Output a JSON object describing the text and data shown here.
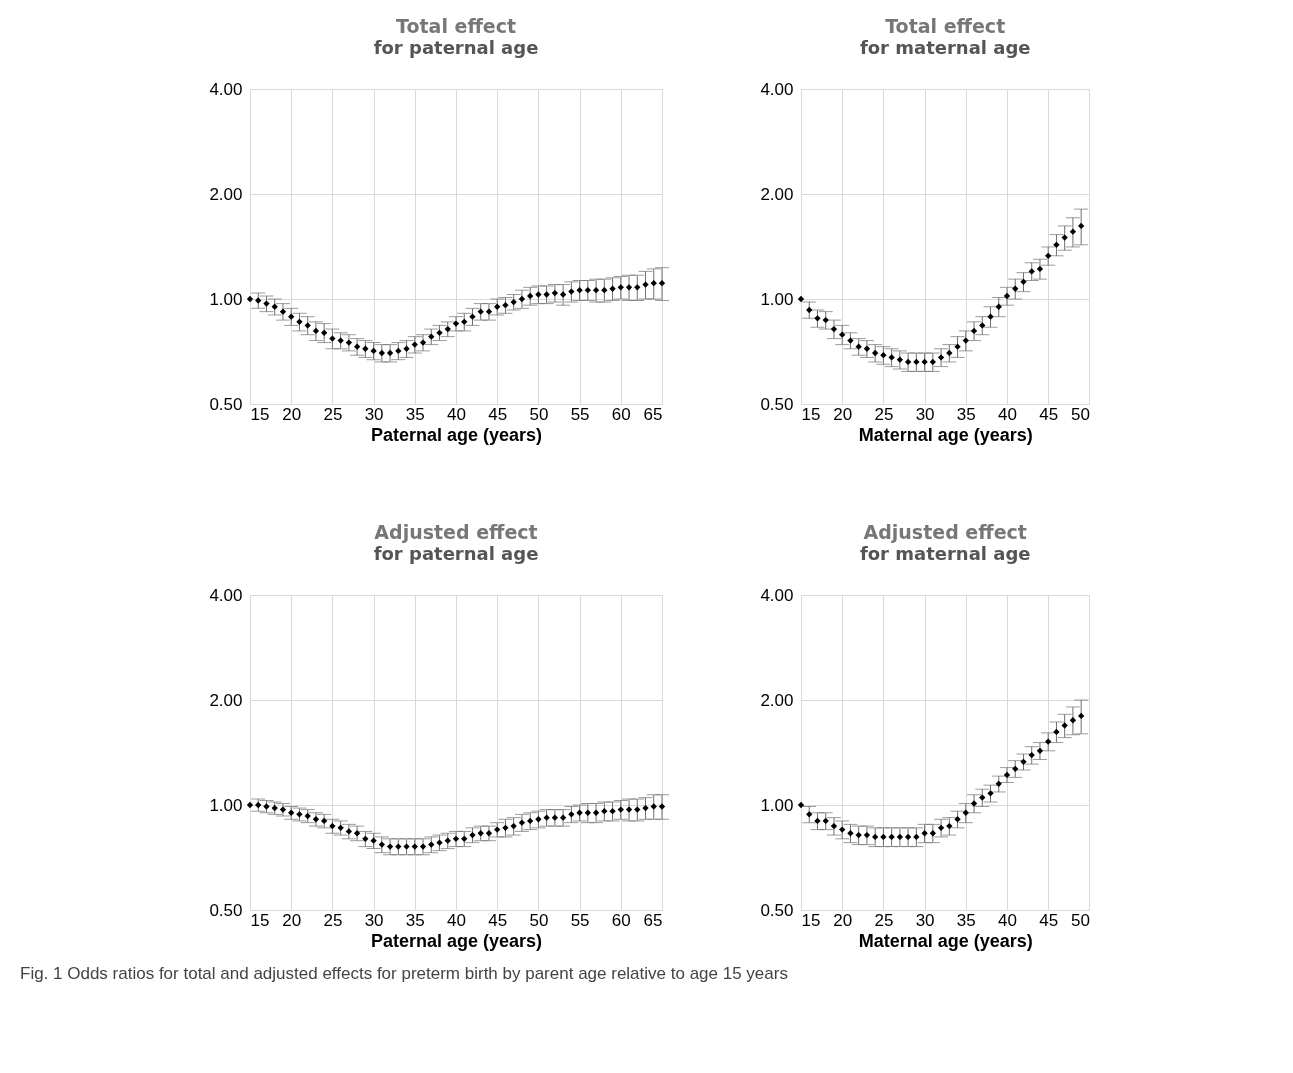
{
  "chart_data": [
    {
      "type": "scatter",
      "title": "Total effect",
      "subtitle": "for paternal age",
      "xlabel": "Paternal age (years)",
      "log": "y",
      "grid": true,
      "marker": "diamond",
      "xlim": [
        15,
        65
      ],
      "xticks": [
        15,
        20,
        25,
        30,
        35,
        40,
        45,
        50,
        55,
        60,
        65
      ],
      "ylim": [
        0.5,
        4
      ],
      "yticks": [
        {
          "value": 0.5,
          "label": "0.50"
        },
        {
          "value": 1,
          "label": "1.00"
        },
        {
          "value": 2,
          "label": "2.00"
        },
        {
          "value": 4,
          "label": "4.00"
        }
      ],
      "x": [
        15,
        16,
        17,
        18,
        19,
        20,
        21,
        22,
        23,
        24,
        25,
        26,
        27,
        28,
        29,
        30,
        31,
        32,
        33,
        34,
        35,
        36,
        37,
        38,
        39,
        40,
        41,
        42,
        43,
        44,
        45,
        46,
        47,
        48,
        49,
        50,
        51,
        52,
        53,
        54,
        55,
        56,
        57,
        58,
        59,
        60,
        61,
        62,
        63,
        64,
        65
      ],
      "series": [
        {
          "color": "#000000",
          "values": [
            1.0,
            0.99,
            0.97,
            0.95,
            0.92,
            0.89,
            0.86,
            0.84,
            0.81,
            0.8,
            0.77,
            0.76,
            0.75,
            0.73,
            0.72,
            0.71,
            0.7,
            0.7,
            0.71,
            0.72,
            0.74,
            0.75,
            0.78,
            0.8,
            0.82,
            0.85,
            0.86,
            0.89,
            0.92,
            0.92,
            0.95,
            0.96,
            0.98,
            1.0,
            1.02,
            1.03,
            1.03,
            1.04,
            1.03,
            1.05,
            1.06,
            1.06,
            1.06,
            1.06,
            1.07,
            1.08,
            1.08,
            1.08,
            1.1,
            1.11,
            1.11
          ],
          "errors": [
            null,
            0.05,
            0.05,
            0.05,
            0.05,
            0.05,
            0.05,
            0.05,
            0.05,
            0.05,
            0.05,
            0.04,
            0.04,
            0.04,
            0.04,
            0.04,
            0.04,
            0.04,
            0.04,
            0.04,
            0.04,
            0.04,
            0.04,
            0.04,
            0.04,
            0.04,
            0.05,
            0.05,
            0.05,
            0.05,
            0.05,
            0.05,
            0.05,
            0.06,
            0.06,
            0.06,
            0.06,
            0.06,
            0.07,
            0.07,
            0.07,
            0.07,
            0.08,
            0.08,
            0.08,
            0.08,
            0.09,
            0.09,
            0.1,
            0.11,
            0.12
          ]
        }
      ]
    },
    {
      "type": "scatter",
      "title": "Total effect",
      "subtitle": "for maternal age",
      "xlabel": "Maternal age (years)",
      "log": "y",
      "grid": true,
      "marker": "diamond",
      "xlim": [
        15,
        50
      ],
      "xticks": [
        15,
        20,
        25,
        30,
        35,
        40,
        45,
        50
      ],
      "ylim": [
        0.5,
        4
      ],
      "yticks": [
        {
          "value": 0.5,
          "label": "0.50"
        },
        {
          "value": 1,
          "label": "1.00"
        },
        {
          "value": 2,
          "label": "2.00"
        },
        {
          "value": 4,
          "label": "4.00"
        }
      ],
      "x": [
        15,
        16,
        17,
        18,
        19,
        20,
        21,
        22,
        23,
        24,
        25,
        26,
        27,
        28,
        29,
        30,
        31,
        32,
        33,
        34,
        35,
        36,
        37,
        38,
        39,
        40,
        41,
        42,
        43,
        44,
        45,
        46,
        47,
        48,
        49
      ],
      "series": [
        {
          "color": "#000000",
          "values": [
            1.0,
            0.93,
            0.88,
            0.87,
            0.82,
            0.79,
            0.76,
            0.73,
            0.72,
            0.7,
            0.69,
            0.68,
            0.67,
            0.66,
            0.66,
            0.66,
            0.66,
            0.68,
            0.7,
            0.73,
            0.76,
            0.81,
            0.84,
            0.89,
            0.95,
            1.02,
            1.07,
            1.12,
            1.2,
            1.22,
            1.33,
            1.43,
            1.5,
            1.56,
            1.62
          ],
          "errors": [
            null,
            0.05,
            0.05,
            0.05,
            0.05,
            0.05,
            0.04,
            0.04,
            0.04,
            0.04,
            0.04,
            0.04,
            0.04,
            0.04,
            0.04,
            0.04,
            0.04,
            0.04,
            0.04,
            0.05,
            0.05,
            0.05,
            0.05,
            0.06,
            0.06,
            0.06,
            0.07,
            0.07,
            0.07,
            0.08,
            0.08,
            0.1,
            0.12,
            0.15,
            0.19
          ]
        }
      ]
    },
    {
      "type": "scatter",
      "title": "Adjusted effect",
      "subtitle": "for paternal age",
      "xlabel": "Paternal age (years)",
      "log": "y",
      "grid": true,
      "marker": "diamond",
      "xlim": [
        15,
        65
      ],
      "xticks": [
        15,
        20,
        25,
        30,
        35,
        40,
        45,
        50,
        55,
        60,
        65
      ],
      "ylim": [
        0.5,
        4
      ],
      "yticks": [
        {
          "value": 0.5,
          "label": "0.50"
        },
        {
          "value": 1,
          "label": "1.00"
        },
        {
          "value": 2,
          "label": "2.00"
        },
        {
          "value": 4,
          "label": "4.00"
        }
      ],
      "x": [
        15,
        16,
        17,
        18,
        19,
        20,
        21,
        22,
        23,
        24,
        25,
        26,
        27,
        28,
        29,
        30,
        31,
        32,
        33,
        34,
        35,
        36,
        37,
        38,
        39,
        40,
        41,
        42,
        43,
        44,
        45,
        46,
        47,
        48,
        49,
        50,
        51,
        52,
        53,
        54,
        55,
        56,
        57,
        58,
        59,
        60,
        61,
        62,
        63,
        64,
        65
      ],
      "series": [
        {
          "color": "#000000",
          "values": [
            1.0,
            1.0,
            0.99,
            0.98,
            0.97,
            0.95,
            0.94,
            0.93,
            0.91,
            0.9,
            0.87,
            0.86,
            0.84,
            0.83,
            0.8,
            0.79,
            0.77,
            0.76,
            0.76,
            0.76,
            0.76,
            0.76,
            0.77,
            0.78,
            0.79,
            0.8,
            0.8,
            0.82,
            0.83,
            0.83,
            0.85,
            0.86,
            0.87,
            0.89,
            0.9,
            0.91,
            0.92,
            0.92,
            0.92,
            0.94,
            0.95,
            0.95,
            0.95,
            0.96,
            0.96,
            0.97,
            0.97,
            0.97,
            0.98,
            0.99,
            0.99
          ],
          "errors": [
            null,
            0.04,
            0.04,
            0.04,
            0.04,
            0.04,
            0.04,
            0.04,
            0.04,
            0.04,
            0.04,
            0.04,
            0.04,
            0.04,
            0.04,
            0.04,
            0.04,
            0.04,
            0.04,
            0.04,
            0.04,
            0.04,
            0.04,
            0.04,
            0.04,
            0.04,
            0.04,
            0.04,
            0.04,
            0.04,
            0.04,
            0.05,
            0.05,
            0.05,
            0.05,
            0.05,
            0.05,
            0.05,
            0.05,
            0.05,
            0.05,
            0.06,
            0.06,
            0.06,
            0.06,
            0.06,
            0.07,
            0.07,
            0.07,
            0.08,
            0.08
          ]
        }
      ]
    },
    {
      "type": "scatter",
      "title": "Adjusted effect",
      "subtitle": "for maternal age",
      "xlabel": "Maternal age (years)",
      "log": "y",
      "grid": true,
      "marker": "diamond",
      "xlim": [
        15,
        50
      ],
      "xticks": [
        15,
        20,
        25,
        30,
        35,
        40,
        45,
        50
      ],
      "ylim": [
        0.5,
        4
      ],
      "yticks": [
        {
          "value": 0.5,
          "label": "0.50"
        },
        {
          "value": 1,
          "label": "1.00"
        },
        {
          "value": 2,
          "label": "2.00"
        },
        {
          "value": 4,
          "label": "4.00"
        }
      ],
      "annotations": [
        "Fig. 1 Odds ratios for total and adjusted effects for preterm birth by parent age relative to age 15 years"
      ],
      "x": [
        15,
        16,
        17,
        18,
        19,
        20,
        21,
        22,
        23,
        24,
        25,
        26,
        27,
        28,
        29,
        30,
        31,
        32,
        33,
        34,
        35,
        36,
        37,
        38,
        39,
        40,
        41,
        42,
        43,
        44,
        45,
        46,
        47,
        48,
        49
      ],
      "series": [
        {
          "color": "#000000",
          "values": [
            1.0,
            0.94,
            0.9,
            0.9,
            0.87,
            0.85,
            0.83,
            0.82,
            0.82,
            0.81,
            0.81,
            0.81,
            0.81,
            0.81,
            0.81,
            0.83,
            0.83,
            0.86,
            0.87,
            0.91,
            0.95,
            1.01,
            1.05,
            1.08,
            1.15,
            1.22,
            1.27,
            1.33,
            1.39,
            1.43,
            1.52,
            1.62,
            1.69,
            1.75,
            1.8
          ],
          "errors": [
            null,
            0.05,
            0.05,
            0.05,
            0.05,
            0.05,
            0.05,
            0.05,
            0.05,
            0.05,
            0.05,
            0.05,
            0.05,
            0.05,
            0.05,
            0.05,
            0.05,
            0.05,
            0.05,
            0.05,
            0.06,
            0.06,
            0.06,
            0.06,
            0.06,
            0.06,
            0.07,
            0.07,
            0.08,
            0.08,
            0.09,
            0.11,
            0.13,
            0.16,
            0.2
          ]
        }
      ]
    }
  ]
}
